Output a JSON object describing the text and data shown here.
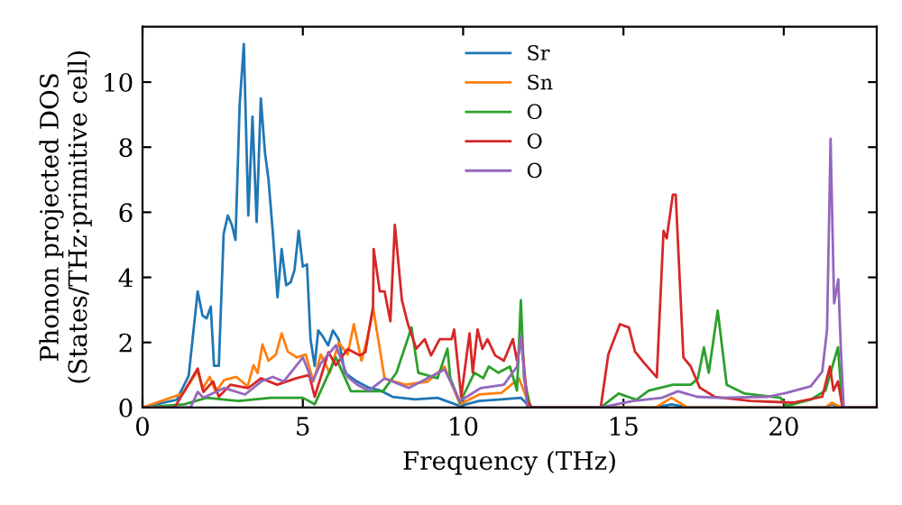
{
  "chart_data": {
    "type": "line",
    "xlabel": "Frequency (THz)",
    "ylabel": "Phonon projected DOS\n(States/THz·primitive cell)",
    "xlim": [
      0,
      22.9
    ],
    "ylim": [
      0,
      11.7
    ],
    "xticks": [
      0,
      5,
      10,
      15,
      20
    ],
    "yticks": [
      0,
      2,
      4,
      6,
      8,
      10
    ],
    "grid": false,
    "legend": "top",
    "line_style": "solid",
    "marker": "none",
    "series": [
      {
        "name": "Sr",
        "color": "#1f77b4",
        "x": [
          0,
          1.07,
          1.44,
          1.72,
          1.87,
          2.0,
          2.13,
          2.23,
          2.38,
          2.53,
          2.66,
          2.79,
          2.9,
          3.03,
          3.16,
          3.3,
          3.43,
          3.56,
          3.69,
          3.82,
          3.93,
          4.06,
          4.21,
          4.34,
          4.48,
          4.62,
          4.74,
          4.87,
          5.0,
          5.13,
          5.24,
          5.37,
          5.48,
          5.62,
          5.79,
          5.94,
          6.12,
          6.31,
          6.69,
          7.06,
          7.43,
          7.8,
          8.5,
          9.2,
          9.9,
          10.5,
          11.2,
          11.8,
          12.1,
          16.0,
          16.5,
          17.0,
          21.3,
          21.5,
          21.8,
          22.9
        ],
        "values": [
          0,
          0.24,
          0.98,
          3.57,
          2.83,
          2.74,
          3.1,
          1.28,
          1.28,
          5.33,
          5.9,
          5.6,
          5.15,
          9.3,
          11.17,
          5.9,
          8.94,
          5.7,
          9.5,
          7.83,
          7.0,
          5.43,
          3.39,
          4.87,
          3.76,
          3.85,
          4.22,
          5.43,
          4.33,
          4.4,
          2.09,
          1.28,
          2.37,
          2.19,
          1.91,
          2.37,
          2.09,
          1.07,
          0.8,
          0.61,
          0.52,
          0.33,
          0.25,
          0.3,
          0.05,
          0.2,
          0.25,
          0.3,
          0,
          0,
          0.1,
          0,
          0,
          0.1,
          0,
          0
        ]
      },
      {
        "name": "Sn",
        "color": "#ff7f0e",
        "x": [
          0,
          1.26,
          1.72,
          1.87,
          2.1,
          2.28,
          2.55,
          2.93,
          3.28,
          3.46,
          3.59,
          3.74,
          3.93,
          4.16,
          4.34,
          4.53,
          4.81,
          5.09,
          5.33,
          5.56,
          5.84,
          6.12,
          6.4,
          6.59,
          6.83,
          7.0,
          7.2,
          7.55,
          8.2,
          8.9,
          9.42,
          9.9,
          10.5,
          11.2,
          11.74,
          12.1,
          16.0,
          16.5,
          17.0,
          21.3,
          21.5,
          21.8,
          22.9
        ],
        "values": [
          0,
          0.43,
          1.13,
          0.57,
          0.94,
          0.48,
          0.85,
          0.94,
          0.65,
          1.3,
          1.06,
          1.94,
          1.44,
          1.63,
          2.28,
          1.72,
          1.54,
          1.63,
          0.8,
          1.63,
          1.06,
          2.0,
          1.63,
          2.56,
          1.44,
          2.09,
          3.02,
          0.89,
          0.7,
          0.8,
          1.26,
          0.1,
          0.4,
          0.45,
          0.9,
          0,
          0,
          0.3,
          0,
          0,
          0.15,
          0,
          0
        ]
      },
      {
        "name": "O",
        "color": "#2ca02c",
        "x": [
          0,
          1.3,
          2.0,
          3.0,
          4.0,
          5.0,
          5.37,
          6.03,
          6.5,
          7.5,
          7.92,
          8.39,
          8.6,
          9.2,
          9.51,
          9.6,
          9.9,
          10.35,
          10.63,
          10.8,
          11.1,
          11.46,
          11.68,
          11.8,
          11.9,
          12.1,
          14.29,
          14.85,
          15.4,
          15.79,
          16.54,
          17.1,
          17.32,
          17.51,
          17.66,
          17.94,
          18.22,
          18.78,
          19.9,
          20.09,
          20.84,
          21.3,
          21.69,
          21.83,
          22.9
        ],
        "values": [
          0,
          0.1,
          0.3,
          0.2,
          0.3,
          0.3,
          0.1,
          1.54,
          0.5,
          0.5,
          1.07,
          2.46,
          1.07,
          0.9,
          1.81,
          0.9,
          0.15,
          1.07,
          0.9,
          1.26,
          1.07,
          1.26,
          0.52,
          3.3,
          0.9,
          0,
          0,
          0.43,
          0.24,
          0.52,
          0.7,
          0.7,
          0.89,
          1.85,
          1.07,
          2.98,
          0.7,
          0.43,
          0.3,
          0.05,
          0.24,
          0.52,
          1.85,
          0,
          0
        ]
      },
      {
        "name": "O",
        "color": "#d62728",
        "x": [
          0,
          1.0,
          1.72,
          1.9,
          2.2,
          2.38,
          2.74,
          3.3,
          3.7,
          4.2,
          4.8,
          5.2,
          5.37,
          5.8,
          6.03,
          6.4,
          6.78,
          6.95,
          7.19,
          7.21,
          7.4,
          7.55,
          7.73,
          7.87,
          8.09,
          8.28,
          8.54,
          8.8,
          9.0,
          9.27,
          9.64,
          9.72,
          9.94,
          10.2,
          10.3,
          10.45,
          10.6,
          10.76,
          11.0,
          11.27,
          11.55,
          11.68,
          11.82,
          12.0,
          12.15,
          14.29,
          14.53,
          14.89,
          15.17,
          15.36,
          15.66,
          16.04,
          16.25,
          16.35,
          16.54,
          16.63,
          16.87,
          17.1,
          17.38,
          17.85,
          18.97,
          20.28,
          21.2,
          21.44,
          21.55,
          21.69,
          21.83,
          22.9
        ],
        "values": [
          0,
          0,
          1.2,
          0.48,
          0.8,
          0.33,
          0.7,
          0.6,
          0.9,
          0.7,
          0.9,
          1.0,
          0.33,
          1.7,
          1.3,
          1.8,
          1.6,
          1.7,
          3.1,
          4.87,
          3.57,
          3.57,
          2.65,
          5.61,
          3.3,
          2.56,
          1.81,
          2.1,
          1.6,
          2.1,
          2.1,
          2.4,
          0.33,
          2.28,
          1.07,
          2.4,
          1.8,
          2.1,
          1.6,
          1.44,
          2.1,
          1.44,
          2.1,
          0.2,
          0,
          0,
          1.64,
          2.56,
          2.46,
          1.72,
          1.35,
          0.93,
          5.43,
          5.2,
          6.54,
          6.54,
          1.54,
          1.26,
          0.61,
          0.33,
          0.2,
          0.15,
          0.33,
          1.26,
          0.52,
          0.8,
          0,
          0
        ]
      },
      {
        "name": "O",
        "color": "#9467bd",
        "x": [
          0,
          1.5,
          1.72,
          1.9,
          2.55,
          3.2,
          3.7,
          4.06,
          4.4,
          5.0,
          5.3,
          5.56,
          6.03,
          6.4,
          6.7,
          7.06,
          7.43,
          7.55,
          8.3,
          9.42,
          9.9,
          10.55,
          11.27,
          11.68,
          11.8,
          12.0,
          14.29,
          15.3,
          16.2,
          16.7,
          17.3,
          18.0,
          19.5,
          20.09,
          20.84,
          21.2,
          21.35,
          21.46,
          21.57,
          21.7,
          21.78,
          21.87,
          22.9
        ],
        "values": [
          0,
          0,
          0.48,
          0.3,
          0.6,
          0.4,
          0.8,
          0.94,
          0.8,
          1.54,
          0.8,
          1.35,
          1.91,
          0.94,
          0.7,
          0.52,
          0.8,
          0.9,
          0.6,
          1.17,
          0.2,
          0.6,
          0.7,
          1.26,
          2.2,
          0,
          0,
          0.2,
          0.3,
          0.5,
          0.33,
          0.3,
          0.33,
          0.45,
          0.65,
          1.1,
          2.4,
          8.26,
          3.2,
          3.94,
          1.8,
          0,
          0
        ]
      }
    ]
  }
}
